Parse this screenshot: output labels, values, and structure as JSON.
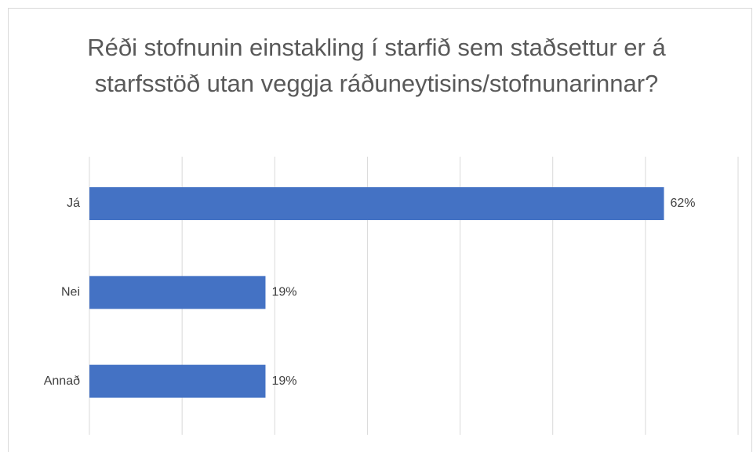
{
  "chart_data": {
    "type": "bar",
    "orientation": "horizontal",
    "title": "Réði stofnunin einstakling í starfið sem staðsettur er á starfsstöð utan veggja ráðuneytisins/stofnunarinnar?",
    "categories": [
      "Já",
      "Nei",
      "Annað"
    ],
    "values": [
      62,
      19,
      19
    ],
    "value_labels": [
      "62%",
      "19%",
      "19%"
    ],
    "color": "#4472c4",
    "xlim": [
      0,
      70
    ],
    "xticks": [
      0,
      10,
      20,
      30,
      40,
      50,
      60,
      70
    ],
    "grid": true
  }
}
